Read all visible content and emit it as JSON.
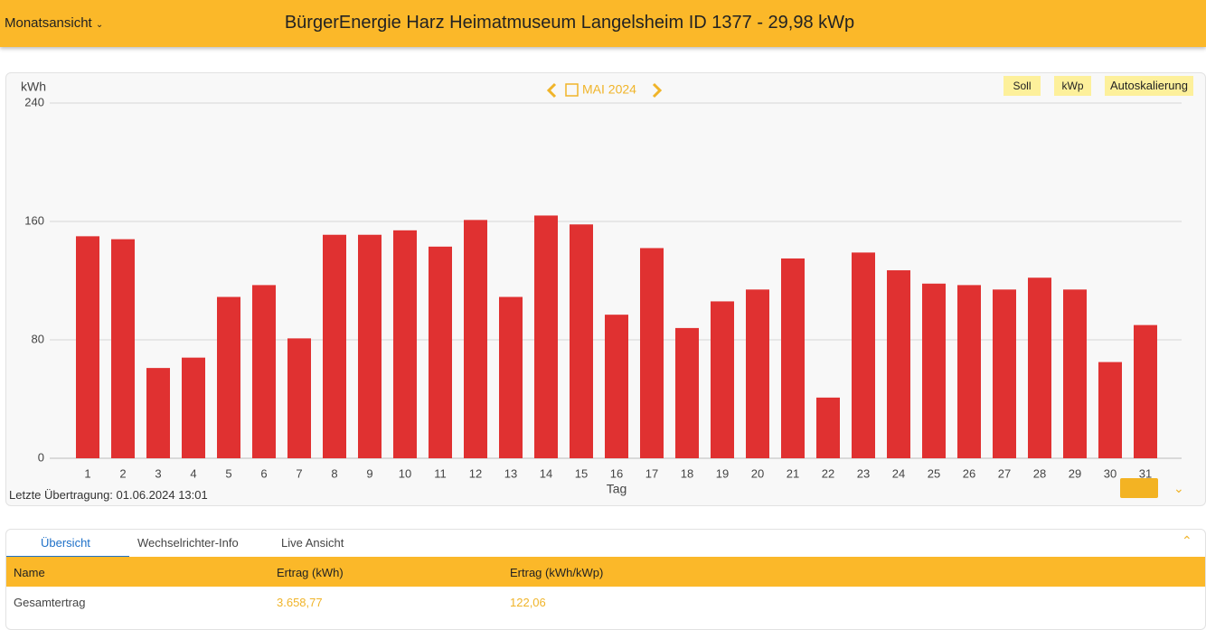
{
  "header": {
    "view": "Monatsansicht",
    "title": "BürgerEnergie Harz Heimatmuseum Langelsheim ID 1377 - 29,98 kWp"
  },
  "chart_nav": {
    "period": "MAI 2024",
    "buttons": [
      "Soll",
      "kWp",
      "Autoskalierung"
    ]
  },
  "chart_data": {
    "type": "bar",
    "y_label": "kWh",
    "x_label": "Tag",
    "categories": [
      "1",
      "2",
      "3",
      "4",
      "5",
      "6",
      "7",
      "8",
      "9",
      "10",
      "11",
      "12",
      "13",
      "14",
      "15",
      "16",
      "17",
      "18",
      "19",
      "20",
      "21",
      "22",
      "23",
      "24",
      "25",
      "26",
      "27",
      "28",
      "29",
      "30",
      "31"
    ],
    "values": [
      150,
      148,
      61,
      68,
      109,
      117,
      81,
      151,
      151,
      154,
      143,
      161,
      109,
      164,
      158,
      97,
      142,
      88,
      106,
      114,
      135,
      41,
      139,
      127,
      118,
      117,
      114,
      122,
      114,
      65,
      90
    ],
    "color": "#e03131",
    "ylim": [
      0,
      240
    ],
    "yticks": [
      0,
      80,
      160,
      240
    ],
    "grid": true
  },
  "last_transfer": "Letzte Übertragung: 01.06.2024 13:01",
  "tabs": [
    "Übersicht",
    "Wechselrichter-Info",
    "Live Ansicht"
  ],
  "table": {
    "columns": [
      "Name",
      "Ertrag (kWh)",
      "Ertrag (kWh/kWp)"
    ],
    "rows": [
      [
        "Gesamtertrag",
        "3.658,77",
        "122,06"
      ]
    ]
  }
}
